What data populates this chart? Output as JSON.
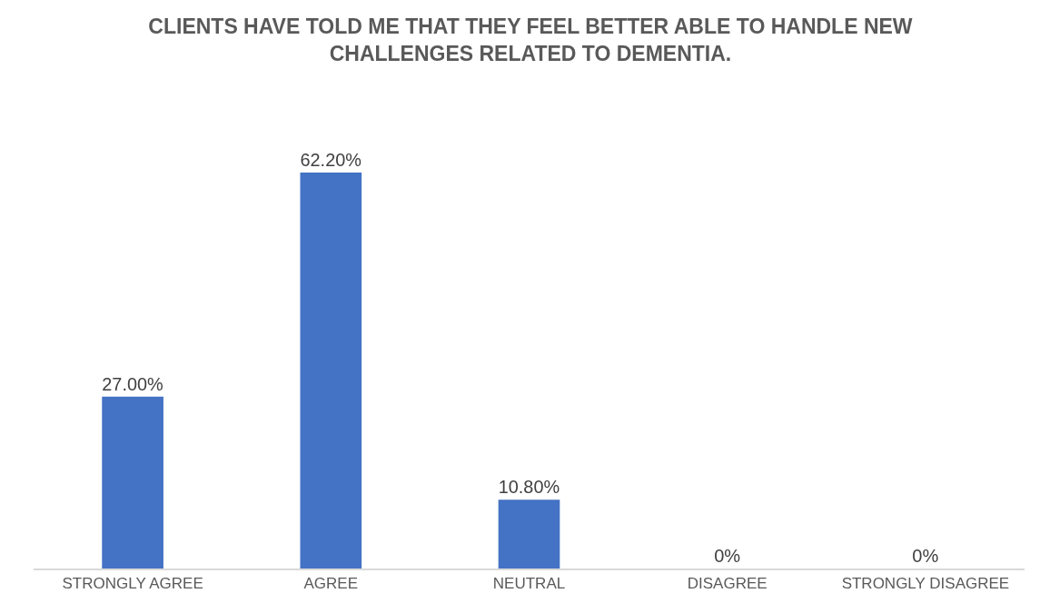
{
  "chart_data": {
    "type": "bar",
    "title": "CLIENTS HAVE TOLD ME THAT THEY FEEL BETTER ABLE TO HANDLE NEW CHALLENGES RELATED TO DEMENTIA.",
    "categories": [
      "STRONGLY AGREE",
      "AGREE",
      "NEUTRAL",
      "DISAGREE",
      "STRONGLY DISAGREE"
    ],
    "values": [
      27,
      62.2,
      10.8,
      0,
      0
    ],
    "value_labels": [
      "27.00%",
      "62.20%",
      "10.80%",
      "0%",
      "0%"
    ],
    "color": "#4472c4",
    "tick_labels": "x",
    "grid": false
  }
}
